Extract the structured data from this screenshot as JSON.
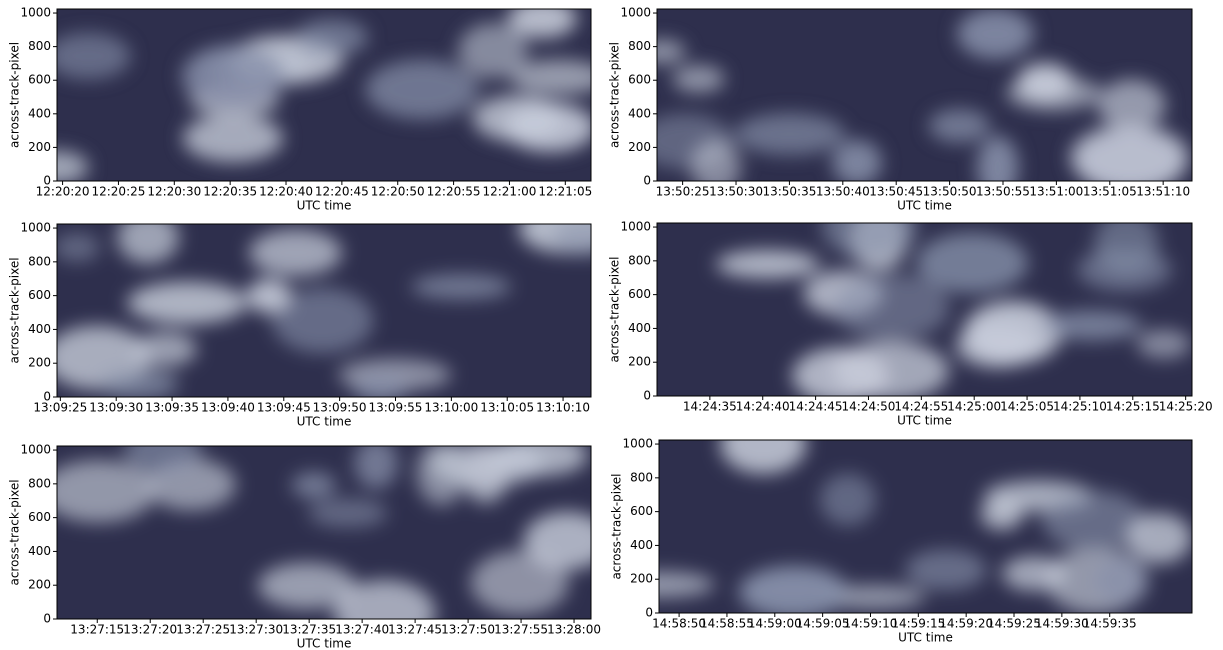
{
  "chart_data": [
    {
      "type": "image",
      "xlabel": "UTC time",
      "ylabel": "across-track-pixel",
      "ylim": [
        0,
        1024
      ],
      "yticks": [
        0,
        200,
        400,
        600,
        800,
        1000
      ],
      "xlim": [
        44419.5,
        44467.3
      ],
      "xticks": [
        {
          "value": 44420,
          "label": "12:20:20"
        },
        {
          "value": 44425,
          "label": "12:20:25"
        },
        {
          "value": 44430,
          "label": "12:20:30"
        },
        {
          "value": 44435,
          "label": "12:20:35"
        },
        {
          "value": 44440,
          "label": "12:20:40"
        },
        {
          "value": 44445,
          "label": "12:20:45"
        },
        {
          "value": 44450,
          "label": "12:20:50"
        },
        {
          "value": 44455,
          "label": "12:20:55"
        },
        {
          "value": 44460,
          "label": "12:21:00"
        },
        {
          "value": 44465,
          "label": "12:21:05"
        }
      ]
    },
    {
      "type": "image",
      "xlabel": "UTC time",
      "ylabel": "across-track-pixel",
      "ylim": [
        0,
        1024
      ],
      "yticks": [
        0,
        200,
        400,
        600,
        800,
        1000
      ],
      "xlim": [
        49822.6,
        49872.7
      ],
      "xticks": [
        {
          "value": 49825,
          "label": "13:50:25"
        },
        {
          "value": 49830,
          "label": "13:50:30"
        },
        {
          "value": 49835,
          "label": "13:50:35"
        },
        {
          "value": 49840,
          "label": "13:50:40"
        },
        {
          "value": 49845,
          "label": "13:50:45"
        },
        {
          "value": 49850,
          "label": "13:50:50"
        },
        {
          "value": 49855,
          "label": "13:50:55"
        },
        {
          "value": 49860,
          "label": "13:51:00"
        },
        {
          "value": 49865,
          "label": "13:51:05"
        },
        {
          "value": 49870,
          "label": "13:51:10"
        }
      ]
    },
    {
      "type": "image",
      "xlabel": "UTC time",
      "ylabel": "across-track-pixel",
      "ylim": [
        0,
        1024
      ],
      "yticks": [
        0,
        200,
        400,
        600,
        800,
        1000
      ],
      "xlim": [
        47364.7,
        47412.5
      ],
      "xticks": [
        {
          "value": 47365,
          "label": "13:09:25"
        },
        {
          "value": 47370,
          "label": "13:09:30"
        },
        {
          "value": 47375,
          "label": "13:09:35"
        },
        {
          "value": 47380,
          "label": "13:09:40"
        },
        {
          "value": 47385,
          "label": "13:09:45"
        },
        {
          "value": 47390,
          "label": "13:09:50"
        },
        {
          "value": 47395,
          "label": "13:09:55"
        },
        {
          "value": 47400,
          "label": "13:10:00"
        },
        {
          "value": 47405,
          "label": "13:10:05"
        },
        {
          "value": 47410,
          "label": "13:10:10"
        }
      ]
    },
    {
      "type": "image",
      "xlabel": "UTC time",
      "ylabel": "across-track-pixel",
      "ylim": [
        0,
        1024
      ],
      "yticks": [
        0,
        200,
        400,
        600,
        800,
        1000
      ],
      "xlim": [
        51870,
        51920.6
      ],
      "xticks": [
        {
          "value": 51875,
          "label": "14:24:35"
        },
        {
          "value": 51880,
          "label": "14:24:40"
        },
        {
          "value": 51885,
          "label": "14:24:45"
        },
        {
          "value": 51890,
          "label": "14:24:50"
        },
        {
          "value": 51895,
          "label": "14:24:55"
        },
        {
          "value": 51900,
          "label": "14:25:00"
        },
        {
          "value": 51905,
          "label": "14:25:05"
        },
        {
          "value": 51910,
          "label": "14:25:10"
        },
        {
          "value": 51915,
          "label": "14:25:15"
        },
        {
          "value": 51920,
          "label": "14:25:20"
        }
      ]
    },
    {
      "type": "image",
      "xlabel": "UTC time",
      "ylabel": "across-track-pixel",
      "ylim": [
        0,
        1024
      ],
      "yticks": [
        0,
        200,
        400,
        600,
        800,
        1000
      ],
      "xlim": [
        48431.2,
        48481.6
      ],
      "xticks": [
        {
          "value": 48435,
          "label": "13:27:15"
        },
        {
          "value": 48440,
          "label": "13:27:20"
        },
        {
          "value": 48445,
          "label": "13:27:25"
        },
        {
          "value": 48450,
          "label": "13:27:30"
        },
        {
          "value": 48455,
          "label": "13:27:35"
        },
        {
          "value": 48460,
          "label": "13:27:40"
        },
        {
          "value": 48465,
          "label": "13:27:45"
        },
        {
          "value": 48470,
          "label": "13:27:50"
        },
        {
          "value": 48475,
          "label": "13:27:55"
        },
        {
          "value": 48480,
          "label": "13:28:00"
        }
      ]
    },
    {
      "type": "image",
      "xlabel": "UTC time",
      "ylabel": "across-track-pixel",
      "ylim": [
        0,
        1024
      ],
      "yticks": [
        0,
        200,
        400,
        600,
        800,
        1000
      ],
      "xlim": [
        53927.9,
        53983.6
      ],
      "xticks": [
        {
          "value": 53930,
          "label": "14:58:50"
        },
        {
          "value": 53935,
          "label": "14:58:55"
        },
        {
          "value": 53940,
          "label": "14:59:00"
        },
        {
          "value": 53945,
          "label": "14:59:05"
        },
        {
          "value": 53950,
          "label": "14:59:10"
        },
        {
          "value": 53955,
          "label": "14:59:15"
        },
        {
          "value": 53960,
          "label": "14:59:20"
        },
        {
          "value": 53965,
          "label": "14:59:25"
        },
        {
          "value": 53970,
          "label": "14:59:30"
        },
        {
          "value": 53975,
          "label": "14:59:35"
        }
      ]
    }
  ]
}
